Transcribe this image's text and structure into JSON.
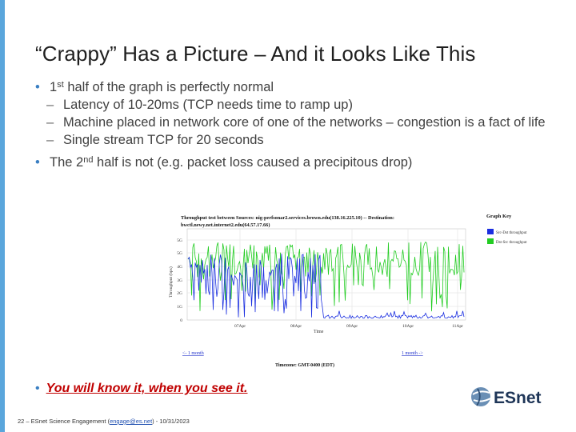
{
  "slide": {
    "title": "“Crappy” Has a Picture – And it Looks Like This",
    "bullets": {
      "b1_pre": "1",
      "b1_sup": "st",
      "b1_post": " half of the graph is perfectly normal",
      "sub1": "Latency of 10-20ms (TCP needs time to ramp up)",
      "sub2": "Machine placed in network core of one of the networks – congestion is a fact of life",
      "sub3": "Single stream TCP for 20 seconds",
      "b2_pre": "The 2",
      "b2_sup": "nd",
      "b2_post": " half is not (e.g. packet loss caused a precipitous drop)"
    },
    "bottom_bullet": "You will know it, when you see it.",
    "footer": {
      "prefix": "22 – ESnet Science Engagement (",
      "link": "engage@es.net",
      "suffix": ") - 10/31/2023"
    },
    "logo_text": "ESnet"
  },
  "graph": {
    "title_line1": "Throughput test between Sources: nig-perfsonar2.services.brown.edu(138.16.225.10) -- Destination:",
    "title_line2": "bwctl.newy.net.internet2.edu(64.57.17.66)",
    "key_title": "Graph Key",
    "key_items": [
      "Src-Dst throughput",
      "Dst-Src throughput"
    ],
    "y_label": "Throughput (bps)",
    "x_label": "Time",
    "y_ticks": [
      "5G",
      "5G",
      "4G",
      "3G",
      "2G",
      "1G",
      "0"
    ],
    "x_ticks": [
      "07Apr",
      "08Apr",
      "09Apr",
      "10Apr",
      "11Apr"
    ],
    "nav_prev": "<- 1 month",
    "nav_next": "1 month ->",
    "timezone": "Timezone: GMT-0400 (EDT)",
    "colors": {
      "src_dst": "#1a2ee0",
      "dst_src": "#22cc22"
    }
  }
}
